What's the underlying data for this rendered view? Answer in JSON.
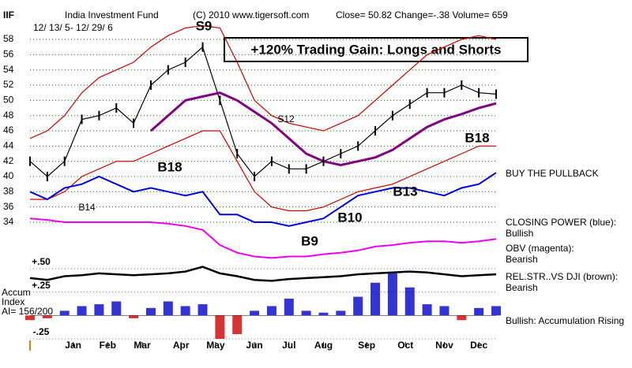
{
  "chart_data": {
    "type": "line",
    "symbol": "IIF",
    "title": "India Investment Fund",
    "copyright": "(C) 2010 www.tigersoft.com",
    "quote": "Close=  50.82  Change=-.38  Volume= 659",
    "date_range": "12/ 13/ 5-  12/ 29/ 6",
    "headline": "+120% Trading Gain: Longs and Shorts",
    "x": [
      0,
      2,
      4,
      6,
      8,
      10,
      12,
      14,
      16,
      18,
      20,
      22,
      24,
      26,
      28,
      30,
      32,
      34,
      36,
      38,
      40,
      42,
      44,
      46,
      48,
      50,
      52,
      54
    ],
    "xlim": [
      0,
      54
    ],
    "xticks": [
      {
        "value": 5,
        "label": "Jan"
      },
      {
        "value": 9,
        "label": "Feb"
      },
      {
        "value": 13,
        "label": "Mar"
      },
      {
        "value": 17.5,
        "label": "Apr"
      },
      {
        "value": 21.5,
        "label": "May"
      },
      {
        "value": 26,
        "label": "Jun"
      },
      {
        "value": 30,
        "label": "Jul"
      },
      {
        "value": 34,
        "label": "Aug"
      },
      {
        "value": 39,
        "label": "Sep"
      },
      {
        "value": 43.5,
        "label": "Oct"
      },
      {
        "value": 48,
        "label": "Nov"
      },
      {
        "value": 52,
        "label": "Dec"
      }
    ],
    "ylim": [
      28,
      60
    ],
    "yticks": [
      34,
      36,
      38,
      40,
      42,
      44,
      46,
      48,
      50,
      52,
      54,
      56,
      58
    ],
    "grid": true,
    "series": [
      {
        "name": "Price",
        "color": "#000000",
        "values": [
          42,
          40,
          42,
          47.5,
          48,
          49,
          47,
          52,
          54,
          55,
          57,
          50,
          43,
          40,
          42,
          41,
          41,
          42,
          43,
          44,
          46,
          48,
          49.5,
          51,
          51,
          52,
          51,
          50.82
        ]
      },
      {
        "name": "Upper band",
        "color": "#cc0000",
        "values": [
          45,
          46,
          48,
          51,
          53,
          54,
          55,
          57,
          58.5,
          59.5,
          59.8,
          59.5,
          55,
          50,
          48,
          47,
          46.5,
          46,
          47,
          48,
          50,
          52,
          54,
          56,
          57,
          58,
          58.5,
          58
        ]
      },
      {
        "name": "Lower band",
        "color": "#cc0000",
        "values": [
          37,
          37,
          38,
          40,
          41,
          42,
          42,
          43,
          44,
          45,
          46,
          46,
          42,
          38,
          36,
          35.5,
          35.5,
          36,
          37,
          38,
          38.5,
          39,
          40,
          41,
          42,
          43,
          44,
          44
        ]
      },
      {
        "name": "Moving average",
        "color": "#800080",
        "values": [
          null,
          null,
          null,
          null,
          null,
          null,
          null,
          46,
          48,
          50,
          50.5,
          51,
          50,
          48.5,
          47,
          45,
          43,
          42,
          41.5,
          42,
          42.5,
          43.5,
          45,
          46.5,
          47.5,
          48.2,
          49,
          49.6
        ]
      },
      {
        "name": "CLOSING POWER (blue):",
        "status": "Bullish",
        "color": "#0000dd",
        "values": [
          38,
          37,
          38.5,
          39,
          40,
          39,
          38,
          38.5,
          38,
          37.5,
          38,
          35,
          35,
          34,
          34,
          33.5,
          34,
          34.5,
          36,
          37.5,
          38,
          38.5,
          38.5,
          38,
          37.5,
          38.5,
          39,
          40.5
        ]
      },
      {
        "name": "OBV (magenta):",
        "status": "Bearish",
        "color": "#ee00ee",
        "values": [
          34.5,
          34.3,
          34,
          34,
          34,
          34,
          34,
          34,
          33.8,
          33.5,
          33,
          31,
          30,
          29.5,
          29.3,
          29.5,
          29.5,
          29.8,
          30,
          30.3,
          30.8,
          31,
          31.3,
          31.5,
          31.5,
          31.3,
          31.5,
          31.8
        ]
      }
    ],
    "annotations": [
      "S9",
      "S12",
      "B18",
      "B14",
      "B10",
      "B9",
      "B13",
      "B18",
      "BUY THE PULLBACK"
    ],
    "lower": {
      "ylim": [
        -0.28,
        0.52
      ],
      "yticks": [
        {
          "value": 0.5,
          "label": "+.50"
        },
        {
          "value": 0.25,
          "label": "+.25"
        },
        {
          "value": -0.25,
          "label": "-.25"
        }
      ],
      "label": [
        "Accum",
        "Index",
        "AI= 156/200"
      ],
      "relstr": {
        "name": "REL.STR..VS DJI (brown):",
        "status": "Bearish",
        "color": "#000000",
        "values": [
          0.4,
          0.38,
          0.42,
          0.43,
          0.45,
          0.44,
          0.43,
          0.44,
          0.45,
          0.47,
          0.52,
          0.45,
          0.42,
          0.38,
          0.37,
          0.39,
          0.4,
          0.41,
          0.42,
          0.44,
          0.45,
          0.46,
          0.47,
          0.46,
          0.44,
          0.42,
          0.43,
          0.44
        ]
      },
      "accum": {
        "name": "Bullish: Accumulation Rising",
        "color": "#0000cc",
        "neg_color": "#cc0000",
        "values": [
          -0.05,
          -0.03,
          0.05,
          0.1,
          0.12,
          0.15,
          -0.03,
          0.08,
          0.15,
          0.1,
          0.12,
          -0.25,
          -0.2,
          0.05,
          0.1,
          0.18,
          0.05,
          0.03,
          0.05,
          0.2,
          0.35,
          0.45,
          0.3,
          0.12,
          0.1,
          -0.05,
          0.08,
          0.1
        ]
      }
    }
  }
}
